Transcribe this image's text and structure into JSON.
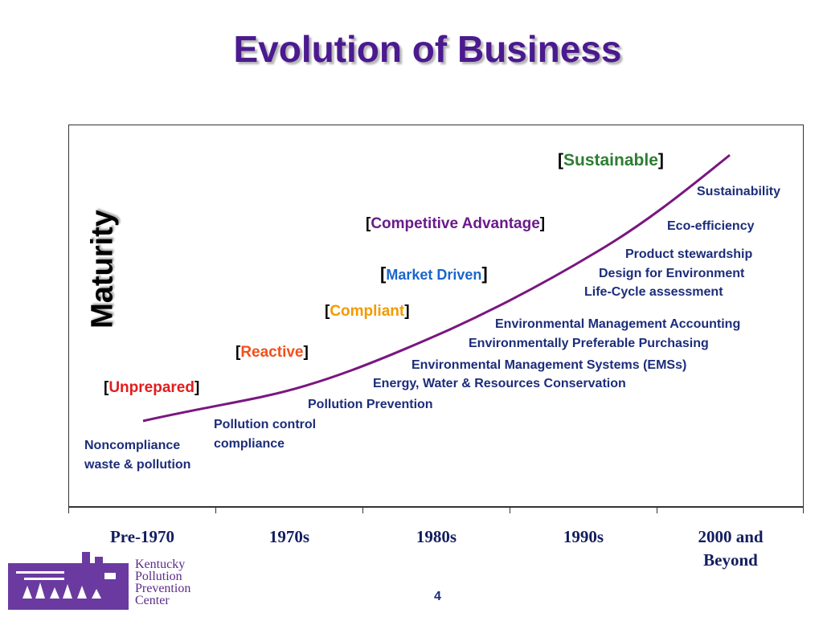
{
  "slide": {
    "title": "Evolution of Business",
    "y_axis_label": "Maturity",
    "page_number": "4"
  },
  "stages": [
    {
      "label": "Unprepared",
      "color": "#e11d1d"
    },
    {
      "label": "Reactive",
      "color": "#f2501a"
    },
    {
      "label": "Compliant",
      "color": "#f29a00"
    },
    {
      "label": "Market Driven",
      "color": "#1a66cc"
    },
    {
      "label": "Competitive Advantage",
      "color": "#6a1b8a"
    },
    {
      "label": "Sustainable",
      "color": "#2e7d32"
    }
  ],
  "practices": [
    "Noncompliance",
    "waste & pollution",
    "Pollution control",
    "compliance",
    "Pollution Prevention",
    "Energy, Water & Resources Conservation",
    "Environmental Management Systems (EMSs)",
    "Environmentally Preferable Purchasing",
    "Environmental Management Accounting",
    "Life-Cycle assessment",
    "Design for Environment",
    "Product stewardship",
    "Eco-efficiency",
    "Sustainability"
  ],
  "eras": [
    "Pre-1970",
    "1970s",
    "1980s",
    "1990s",
    "2000 and",
    "Beyond"
  ],
  "brackets": {
    "open": "[",
    "close": "]"
  },
  "logo": {
    "line1": "Kentucky",
    "line2": "Pollution",
    "line3": "Prevention",
    "line4": "Center"
  },
  "colors": {
    "title": "#4b1a8f",
    "curve": "#7a1680",
    "practice_text": "#1c2d7a",
    "era_text": "#121e5f"
  }
}
